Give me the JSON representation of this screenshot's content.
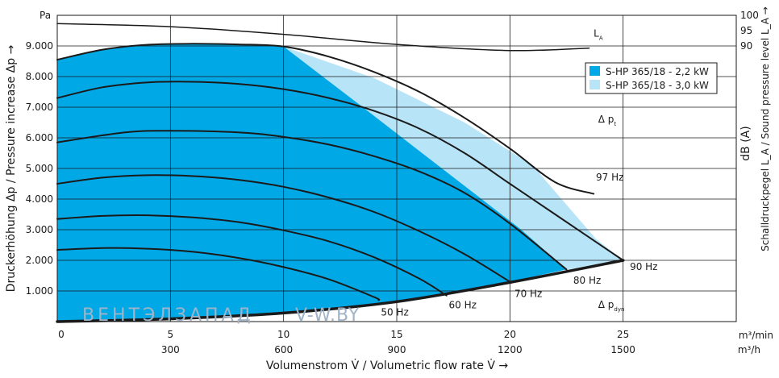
{
  "chart_data": {
    "type": "line",
    "title": "",
    "xlabel": "Volumenstrom V̇ / Volumetric flow rate V̇ →",
    "ylabel": "Druckerhöhung Δp / Pressure increase Δp →",
    "ylabel_right": "Schalldruckpegel L_A / Sound pressure level L_A →",
    "ylabel_right_unit": "dB (A)",
    "y_unit": "Pa",
    "x_unit_top": "m³/min",
    "x_unit_bottom": "m³/h",
    "xlim": [
      0,
      30
    ],
    "ylim": [
      0,
      10000
    ],
    "x_ticks": [
      0,
      5,
      10,
      15,
      20,
      25
    ],
    "x_tick_labels": [
      "0",
      "5",
      "10",
      "15",
      "20",
      "25"
    ],
    "x_ticks_m3h": [
      {
        "x": 5,
        "label": "300"
      },
      {
        "x": 10,
        "label": "600"
      },
      {
        "x": 15,
        "label": "900"
      },
      {
        "x": 20,
        "label": "1200"
      },
      {
        "x": 25,
        "label": "1500"
      }
    ],
    "y_ticks": [
      1000,
      2000,
      3000,
      4000,
      5000,
      6000,
      7000,
      8000,
      9000
    ],
    "y_tick_labels": [
      "1.000",
      "2.000",
      "3.000",
      "4.000",
      "5.000",
      "6.000",
      "7.000",
      "8.000",
      "9.000"
    ],
    "right_axis_ticks": [
      {
        "label": "100",
        "y": 10000
      },
      {
        "label": "95",
        "y": 9500
      },
      {
        "label": "90",
        "y": 9000
      }
    ],
    "grid": true,
    "legend": {
      "placement": "top-right",
      "entries": [
        {
          "label": "S-HP 365/18 - 2,2 kW",
          "color": "#00a8e6"
        },
        {
          "label": "S-HP 365/18 - 3,0 kW",
          "color": "#b8e4f7"
        }
      ]
    },
    "region_22kw": [
      [
        0,
        8550
      ],
      [
        2,
        8880
      ],
      [
        4,
        9040
      ],
      [
        6,
        9070
      ],
      [
        8,
        9050
      ],
      [
        10,
        8980
      ],
      [
        13.5,
        7000
      ],
      [
        17,
        5000
      ],
      [
        20.5,
        3000
      ],
      [
        22.5,
        1700
      ],
      [
        20,
        1300
      ],
      [
        15,
        650
      ],
      [
        10,
        280
      ],
      [
        5,
        90
      ],
      [
        0,
        0
      ]
    ],
    "region_30kw": [
      [
        10,
        8980
      ],
      [
        14,
        7950
      ],
      [
        18,
        6500
      ],
      [
        21,
        5100
      ],
      [
        23.8,
        2700
      ],
      [
        25,
        2000
      ],
      [
        22.5,
        1700
      ],
      [
        20.5,
        3000
      ],
      [
        17,
        5000
      ],
      [
        13.5,
        7000
      ]
    ],
    "series": [
      {
        "name": "",
        "x": [
          0,
          2,
          4,
          6,
          8,
          10,
          12,
          14,
          16,
          18,
          20,
          22,
          23.7
        ],
        "y": [
          8550,
          8880,
          9040,
          9070,
          9050,
          8980,
          8650,
          8150,
          7500,
          6650,
          5650,
          4550,
          4170
        ]
      },
      {
        "name": "",
        "x": [
          0,
          2,
          4,
          6,
          8,
          10,
          12,
          14,
          16,
          18,
          20,
          22,
          25
        ],
        "y": [
          7300,
          7650,
          7810,
          7830,
          7760,
          7590,
          7300,
          6880,
          6300,
          5500,
          4500,
          3500,
          2000
        ]
      },
      {
        "name": "",
        "x": [
          0,
          3,
          5,
          8,
          10,
          12,
          14,
          16,
          18,
          20,
          22.5
        ],
        "y": [
          5850,
          6180,
          6230,
          6180,
          6030,
          5780,
          5400,
          4900,
          4200,
          3200,
          1700
        ]
      },
      {
        "name": "",
        "x": [
          0,
          2,
          4,
          6,
          8,
          10,
          12,
          14,
          16,
          18,
          20
        ],
        "y": [
          4500,
          4700,
          4780,
          4750,
          4630,
          4400,
          4050,
          3580,
          2950,
          2200,
          1300
        ]
      },
      {
        "name": "",
        "x": [
          0,
          2,
          4,
          6,
          8,
          10,
          12,
          14,
          16,
          17.2
        ],
        "y": [
          3350,
          3450,
          3470,
          3400,
          3250,
          2980,
          2620,
          2100,
          1400,
          850
        ]
      },
      {
        "name": "",
        "x": [
          0,
          2,
          4,
          6,
          8,
          10,
          12,
          14,
          14.2
        ],
        "y": [
          2340,
          2400,
          2380,
          2280,
          2080,
          1780,
          1380,
          800,
          700
        ]
      },
      {
        "name": "L_A",
        "x": [
          0,
          5,
          10,
          15,
          20,
          23.5
        ],
        "y": [
          9730,
          9630,
          9380,
          9050,
          8850,
          8930
        ]
      },
      {
        "name": "Δ p_dyn",
        "x": [
          0,
          5,
          10,
          15,
          20,
          25
        ],
        "y": [
          0,
          90,
          280,
          650,
          1280,
          2000
        ]
      }
    ],
    "annotations": [
      {
        "text": "97 Hz",
        "x": 23.8,
        "y": 4600
      },
      {
        "text": "90 Hz",
        "x": 25.3,
        "y": 1680
      },
      {
        "text": "80 Hz",
        "x": 22.8,
        "y": 1240
      },
      {
        "text": "70 Hz",
        "x": 20.2,
        "y": 800
      },
      {
        "text": "60 Hz",
        "x": 17.3,
        "y": 440
      },
      {
        "text": "50 Hz",
        "x": 14.3,
        "y": 200
      },
      {
        "text": "L_A",
        "x": 23.7,
        "y": 9300
      },
      {
        "text": "Δ p_t",
        "x": 23.9,
        "y": 6500
      },
      {
        "text": "Δ p_dyn",
        "x": 23.9,
        "y": 450
      }
    ],
    "watermark": {
      "text1": "ВЕНТЭЛЗАПАД",
      "text2": "V-W.BY"
    }
  }
}
